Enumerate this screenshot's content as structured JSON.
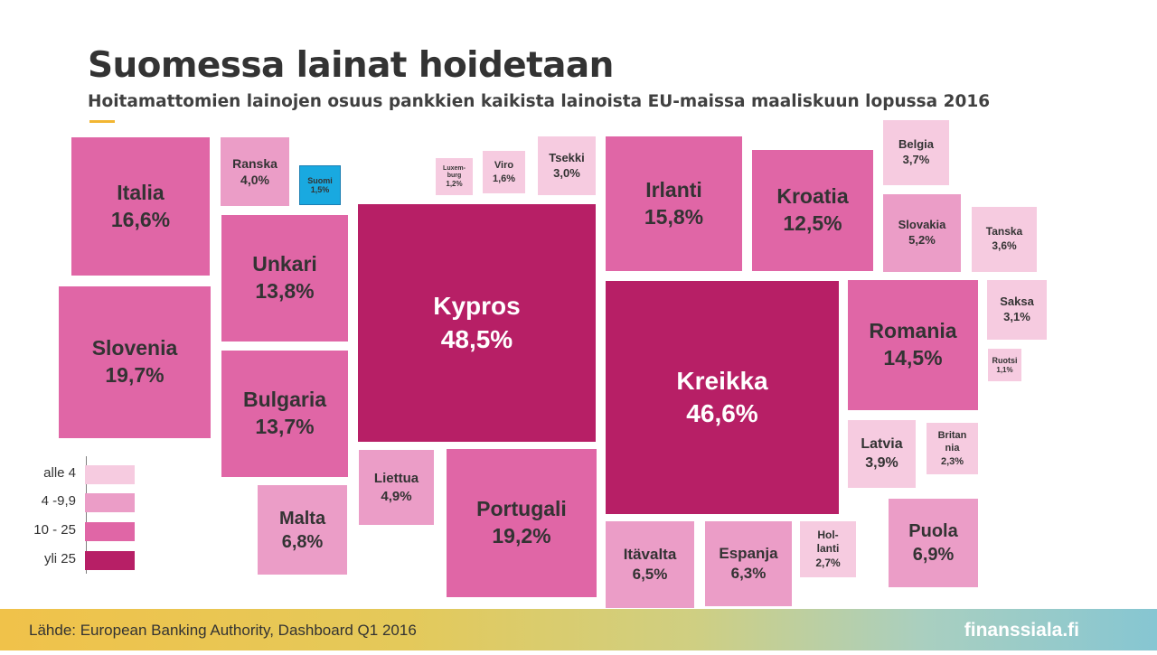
{
  "title": "Suomessa lainat hoidetaan",
  "subtitle": "Hoitamattomien lainojen osuus pankkien kaikista lainoista EU-maissa maaliskuun lopussa 2016",
  "colors": {
    "title": "#333333",
    "accent": "#f2b632",
    "alle_4": "#f6cbe0",
    "range_4_9_9": "#eb9dc7",
    "range_10_25": "#e066a6",
    "yli_25": "#b71f66",
    "finland": "#19a9e0"
  },
  "legend": [
    {
      "label": "alle 4",
      "color": "#f6cbe0"
    },
    {
      "label": "4 -9,9",
      "color": "#eb9dc7"
    },
    {
      "label": "10 - 25",
      "color": "#e066a6"
    },
    {
      "label": "yli 25",
      "color": "#b71f66"
    }
  ],
  "chart_data": {
    "type": "bubble-squares",
    "unit": "%",
    "items": [
      {
        "name": "Italia",
        "value": 16.6,
        "label": "16,6%"
      },
      {
        "name": "Slovenia",
        "value": 19.7,
        "label": "19,7%"
      },
      {
        "name": "Ranska",
        "value": 4.0,
        "label": "4,0%"
      },
      {
        "name": "Suomi",
        "value": 1.5,
        "label": "1,5%"
      },
      {
        "name": "Unkari",
        "value": 13.8,
        "label": "13,8%"
      },
      {
        "name": "Bulgaria",
        "value": 13.7,
        "label": "13,7%"
      },
      {
        "name": "Malta",
        "value": 6.8,
        "label": "6,8%"
      },
      {
        "name": "Luxem-\nburg",
        "value": 1.2,
        "label": "1,2%"
      },
      {
        "name": "Viro",
        "value": 1.6,
        "label": "1,6%"
      },
      {
        "name": "Tsekki",
        "value": 3.0,
        "label": "3,0%"
      },
      {
        "name": "Kypros",
        "value": 48.5,
        "label": "48,5%"
      },
      {
        "name": "Liettua",
        "value": 4.9,
        "label": "4,9%"
      },
      {
        "name": "Portugali",
        "value": 19.2,
        "label": "19,2%"
      },
      {
        "name": "Irlanti",
        "value": 15.8,
        "label": "15,8%"
      },
      {
        "name": "Kroatia",
        "value": 12.5,
        "label": "12,5%"
      },
      {
        "name": "Belgia",
        "value": 3.7,
        "label": "3,7%"
      },
      {
        "name": "Slovakia",
        "value": 5.2,
        "label": "5,2%"
      },
      {
        "name": "Tanska",
        "value": 3.6,
        "label": "3,6%"
      },
      {
        "name": "Kreikka",
        "value": 46.6,
        "label": "46,6%"
      },
      {
        "name": "Romania",
        "value": 14.5,
        "label": "14,5%"
      },
      {
        "name": "Saksa",
        "value": 3.1,
        "label": "3,1%"
      },
      {
        "name": "Ruotsi",
        "value": 1.1,
        "label": "1,1%"
      },
      {
        "name": "Latvia",
        "value": 3.9,
        "label": "3,9%"
      },
      {
        "name": "Britan\nnia",
        "value": 2.3,
        "label": "2,3%"
      },
      {
        "name": "Itävalta",
        "value": 6.5,
        "label": "6,5%"
      },
      {
        "name": "Espanja",
        "value": 6.3,
        "label": "6,3%"
      },
      {
        "name": "Hol-\nlanti",
        "value": 2.7,
        "label": "2,7%"
      },
      {
        "name": "Puola",
        "value": 6.9,
        "label": "6,9%"
      }
    ]
  },
  "footer": {
    "source": "Lähde: European Banking Authority,  Dashboard Q1 2016",
    "brand": "finanssiala.fi"
  }
}
